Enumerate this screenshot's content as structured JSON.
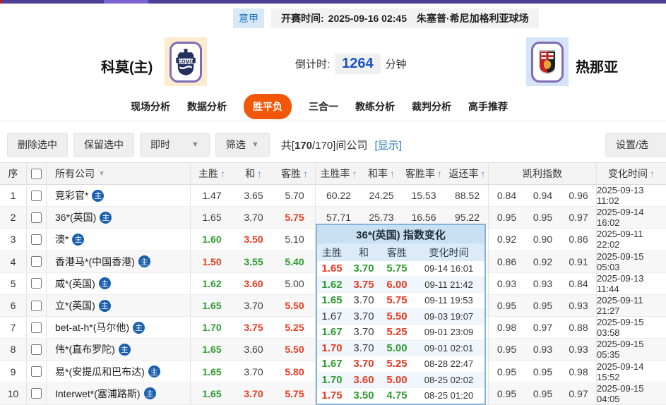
{
  "top_strip": {
    "base_color": "#4c3f95",
    "accent_color": "#7c63d4",
    "edge_color": "#c21f1f"
  },
  "match_bar": {
    "league": "意甲",
    "kickoff_label": "开赛时间:",
    "kickoff_time": "2025-09-16 02:45",
    "venue": "朱塞普·希尼加格利亚球场"
  },
  "teams": {
    "home_name": "科莫(主)",
    "home_logo_text": "COMO",
    "away_name": "热那亚",
    "countdown_label": "倒计时:",
    "countdown_value": "1264",
    "countdown_unit": "分钟"
  },
  "tabs": [
    {
      "label": "现场分析",
      "active": false
    },
    {
      "label": "数据分析",
      "active": false
    },
    {
      "label": "胜平负",
      "active": true
    },
    {
      "label": "三合一",
      "active": false
    },
    {
      "label": "教练分析",
      "active": false
    },
    {
      "label": "裁判分析",
      "active": false
    },
    {
      "label": "高手推荐",
      "active": false
    }
  ],
  "toolbar": {
    "delete_btn": "删除选中",
    "keep_btn": "保留选中",
    "instant_dd": "即时",
    "filter_dd": "筛选",
    "count_prefix": "共[",
    "count_bold": "170",
    "count_rest": "/170]间公司",
    "show_link": "[显示]",
    "settings_btn": "设置/选",
    "caret": "▼"
  },
  "table": {
    "badge_label": "主",
    "sort_arrow": "↑",
    "company_caret": "▼",
    "headers": {
      "seq": "序",
      "company": "所有公司",
      "home": "主胜",
      "draw": "和",
      "away": "客胜",
      "home_rate": "主胜率",
      "draw_rate": "和率",
      "away_rate": "客胜率",
      "return_rate": "返还率",
      "kelly": "凯利指数",
      "change_time": "变化时间"
    },
    "rows": [
      {
        "seq": "1",
        "company": "竞彩官*",
        "odds": [
          {
            "v": "1.47",
            "c": "k"
          },
          {
            "v": "3.65",
            "c": "k"
          },
          {
            "v": "5.70",
            "c": "k"
          }
        ],
        "rates": [
          "60.22",
          "24.25",
          "15.53",
          "88.52"
        ],
        "kelly": [
          "0.84",
          "0.94",
          "0.96"
        ],
        "time": "2025-09-13 11:02"
      },
      {
        "seq": "2",
        "company": "36*(英国)",
        "odds": [
          {
            "v": "1.65",
            "c": "k"
          },
          {
            "v": "3.70",
            "c": "k"
          },
          {
            "v": "5.75",
            "c": "r"
          }
        ],
        "rates": [
          "57.71",
          "25.73",
          "16.56",
          "95.22"
        ],
        "kelly": [
          "0.95",
          "0.95",
          "0.97"
        ],
        "time": "2025-09-14 16:02"
      },
      {
        "seq": "3",
        "company": "澳*",
        "odds": [
          {
            "v": "1.60",
            "c": "g"
          },
          {
            "v": "3.50",
            "c": "r"
          },
          {
            "v": "5.10",
            "c": "k"
          }
        ],
        "rates": [
          "",
          "",
          "",
          ""
        ],
        "kelly": [
          "0.92",
          "0.90",
          "0.86"
        ],
        "time": "2025-09-11 22:02"
      },
      {
        "seq": "4",
        "company": "香港马*(中国香港)",
        "odds": [
          {
            "v": "1.50",
            "c": "r"
          },
          {
            "v": "3.55",
            "c": "g"
          },
          {
            "v": "5.40",
            "c": "g"
          }
        ],
        "rates": [
          "",
          "",
          "",
          ""
        ],
        "kelly": [
          "0.86",
          "0.92",
          "0.91"
        ],
        "time": "2025-09-15 05:03"
      },
      {
        "seq": "5",
        "company": "威*(英国)",
        "odds": [
          {
            "v": "1.62",
            "c": "g"
          },
          {
            "v": "3.60",
            "c": "r"
          },
          {
            "v": "5.00",
            "c": "k"
          }
        ],
        "rates": [
          "",
          "",
          "",
          ""
        ],
        "kelly": [
          "0.93",
          "0.93",
          "0.84"
        ],
        "time": "2025-09-13 11:44"
      },
      {
        "seq": "6",
        "company": "立*(英国)",
        "odds": [
          {
            "v": "1.65",
            "c": "g"
          },
          {
            "v": "3.70",
            "c": "k"
          },
          {
            "v": "5.50",
            "c": "r"
          }
        ],
        "rates": [
          "",
          "",
          "",
          ""
        ],
        "kelly": [
          "0.95",
          "0.95",
          "0.93"
        ],
        "time": "2025-09-11 21:27"
      },
      {
        "seq": "7",
        "company": "bet-at-h*(马尔他)",
        "odds": [
          {
            "v": "1.70",
            "c": "g"
          },
          {
            "v": "3.75",
            "c": "r"
          },
          {
            "v": "5.25",
            "c": "r"
          }
        ],
        "rates": [
          "",
          "",
          "",
          ""
        ],
        "kelly": [
          "0.98",
          "0.97",
          "0.88"
        ],
        "time": "2025-09-15 03:58"
      },
      {
        "seq": "8",
        "company": "伟*(直布罗陀)",
        "odds": [
          {
            "v": "1.65",
            "c": "g"
          },
          {
            "v": "3.60",
            "c": "k"
          },
          {
            "v": "5.50",
            "c": "r"
          }
        ],
        "rates": [
          "",
          "",
          "",
          ""
        ],
        "kelly": [
          "0.95",
          "0.93",
          "0.93"
        ],
        "time": "2025-09-15 05:35"
      },
      {
        "seq": "9",
        "company": "易*(安提瓜和巴布达)",
        "odds": [
          {
            "v": "1.65",
            "c": "g"
          },
          {
            "v": "3.70",
            "c": "k"
          },
          {
            "v": "5.80",
            "c": "r"
          }
        ],
        "rates": [
          "",
          "",
          "",
          ""
        ],
        "kelly": [
          "0.95",
          "0.95",
          "0.98"
        ],
        "time": "2025-09-14 15:52"
      },
      {
        "seq": "10",
        "company": "Interwet*(塞浦路斯)",
        "odds": [
          {
            "v": "1.65",
            "c": "g"
          },
          {
            "v": "3.70",
            "c": "r"
          },
          {
            "v": "5.75",
            "c": "r"
          }
        ],
        "rates": [
          "",
          "",
          "",
          ""
        ],
        "kelly": [
          "0.95",
          "0.95",
          "0.97"
        ],
        "time": "2025-09-15 04:05"
      }
    ]
  },
  "popup": {
    "title": "36*(英国) 指数变化",
    "headers": [
      "主胜",
      "和",
      "客胜",
      "变化时间"
    ],
    "rows": [
      {
        "values": [
          {
            "v": "1.65",
            "c": "r"
          },
          {
            "v": "3.70",
            "c": "g"
          },
          {
            "v": "5.75",
            "c": "g"
          }
        ],
        "time": "09-14 16:01"
      },
      {
        "values": [
          {
            "v": "1.62",
            "c": "g"
          },
          {
            "v": "3.75",
            "c": "r"
          },
          {
            "v": "6.00",
            "c": "r"
          }
        ],
        "time": "09-11 21:42"
      },
      {
        "values": [
          {
            "v": "1.65",
            "c": "g"
          },
          {
            "v": "3.70",
            "c": "k"
          },
          {
            "v": "5.75",
            "c": "r"
          }
        ],
        "time": "09-11 19:53"
      },
      {
        "values": [
          {
            "v": "1.67",
            "c": "k"
          },
          {
            "v": "3.70",
            "c": "k"
          },
          {
            "v": "5.50",
            "c": "r"
          }
        ],
        "time": "09-03 19:07"
      },
      {
        "values": [
          {
            "v": "1.67",
            "c": "g"
          },
          {
            "v": "3.70",
            "c": "k"
          },
          {
            "v": "5.25",
            "c": "r"
          }
        ],
        "time": "09-01 23:09"
      },
      {
        "values": [
          {
            "v": "1.70",
            "c": "r"
          },
          {
            "v": "3.70",
            "c": "k"
          },
          {
            "v": "5.00",
            "c": "g"
          }
        ],
        "time": "09-01 02:01"
      },
      {
        "values": [
          {
            "v": "1.67",
            "c": "g"
          },
          {
            "v": "3.70",
            "c": "r"
          },
          {
            "v": "5.25",
            "c": "r"
          }
        ],
        "time": "08-28 22:47"
      },
      {
        "values": [
          {
            "v": "1.70",
            "c": "g"
          },
          {
            "v": "3.60",
            "c": "r"
          },
          {
            "v": "5.00",
            "c": "r"
          }
        ],
        "time": "08-25 02:02"
      },
      {
        "values": [
          {
            "v": "1.75",
            "c": "r"
          },
          {
            "v": "3.50",
            "c": "g"
          },
          {
            "v": "4.75",
            "c": "g"
          }
        ],
        "time": "08-25 01:20"
      }
    ]
  }
}
